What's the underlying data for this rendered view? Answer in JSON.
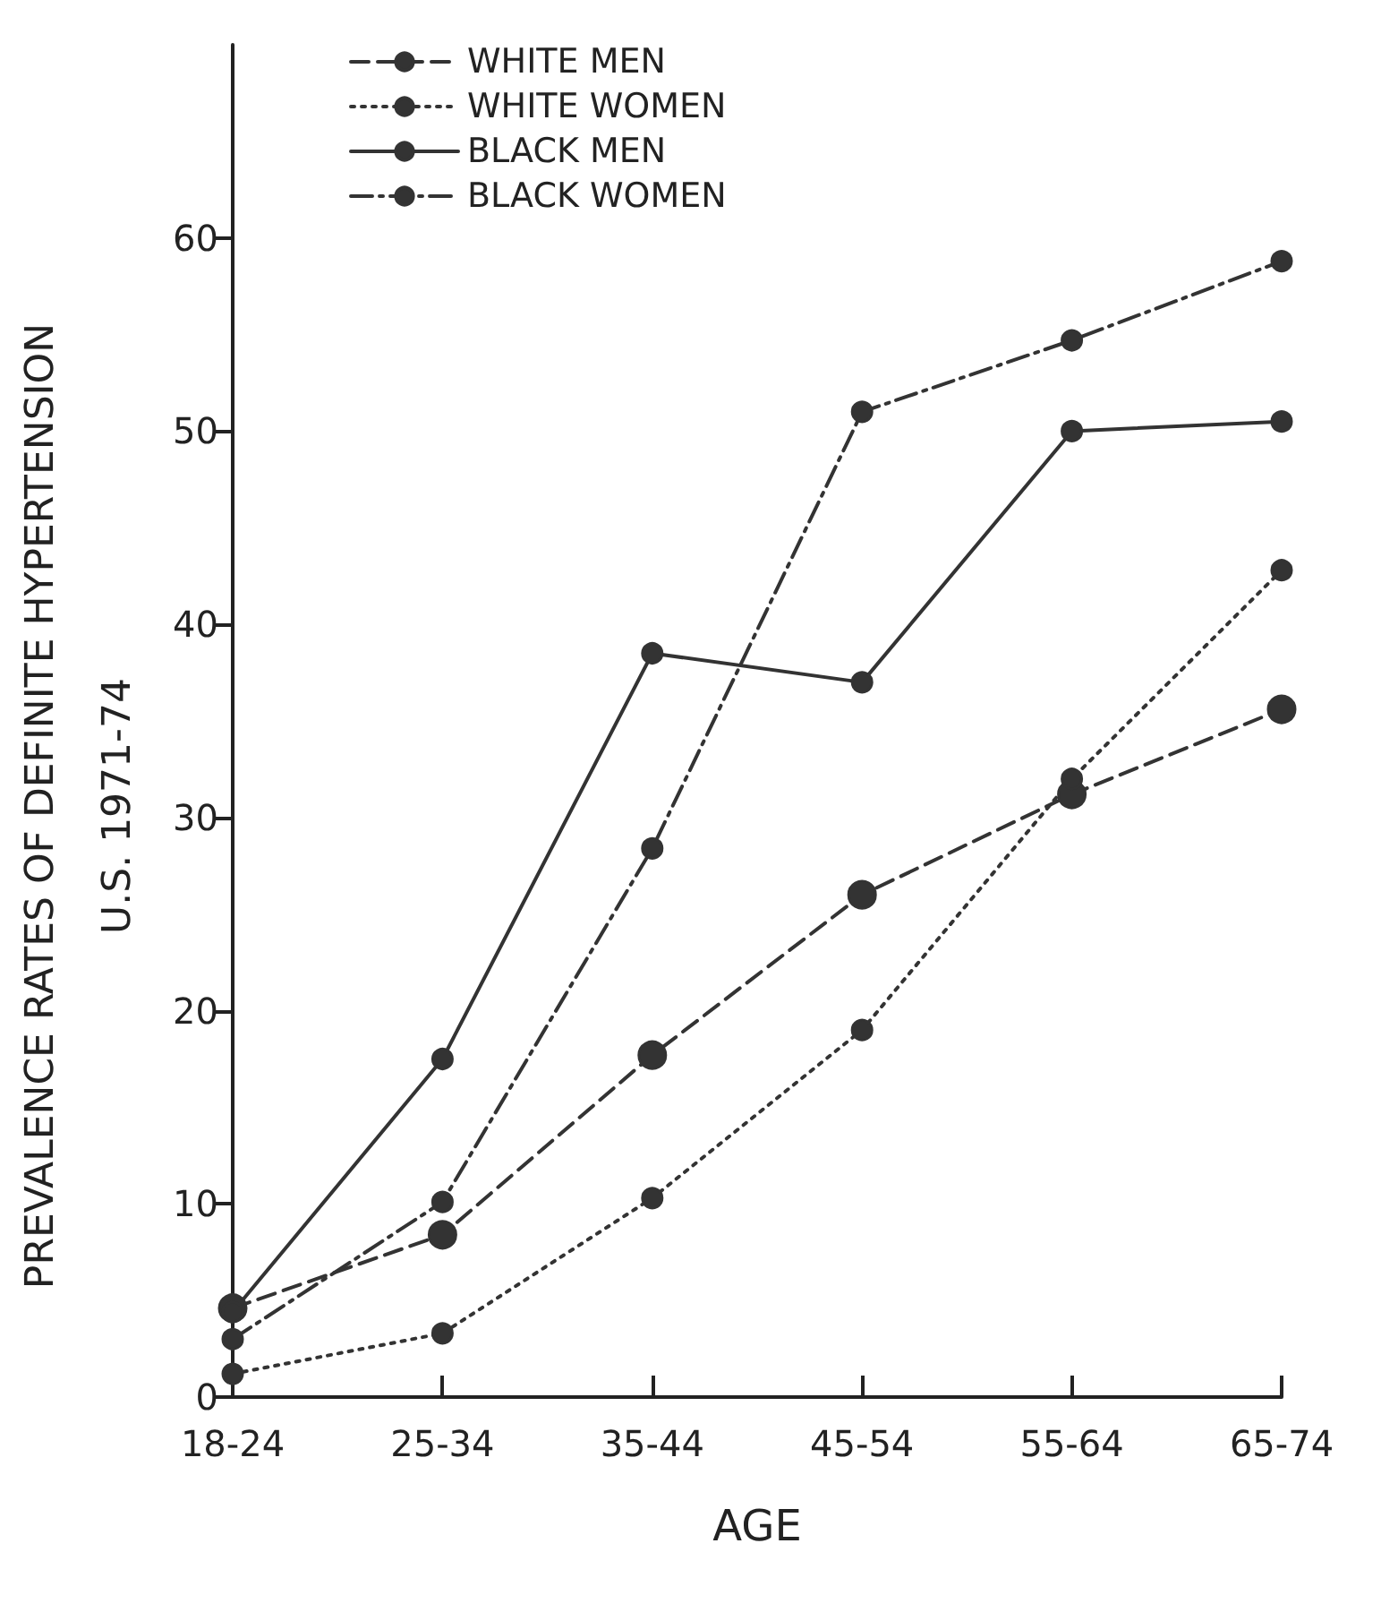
{
  "chart_data": {
    "type": "line",
    "xlabel": "AGE",
    "ylabel": "PREVALENCE RATES OF DEFINITE HYPERTENSION\nU.S. 1971-74",
    "categories": [
      "18-24",
      "25-34",
      "35-44",
      "45-54",
      "55-64",
      "65-74"
    ],
    "series": [
      {
        "name": "WHITE MEN",
        "color": "#333333",
        "line_style": "dashed",
        "marker": "circle",
        "values": [
          4.6,
          8.4,
          17.7,
          26,
          31.2,
          35.6
        ]
      },
      {
        "name": "WHITE WOMEN",
        "color": "#333333",
        "line_style": "dotted",
        "marker": "circle",
        "values": [
          1.2,
          3.3,
          10.3,
          19,
          32,
          42.8
        ]
      },
      {
        "name": "BLACK MEN",
        "color": "#333333",
        "line_style": "solid",
        "marker": "circle",
        "values": [
          4.4,
          17.5,
          38.5,
          37,
          50,
          50.5
        ]
      },
      {
        "name": "BLACK WOMEN",
        "color": "#333333",
        "line_style": "dashdot",
        "marker": "circle",
        "values": [
          3,
          10.1,
          28.4,
          51,
          54.7,
          58.8
        ]
      }
    ],
    "ylim": [
      0,
      70
    ],
    "yticks": [
      0,
      10,
      20,
      30,
      40,
      50,
      60
    ],
    "grid": false,
    "legend": "top left"
  }
}
